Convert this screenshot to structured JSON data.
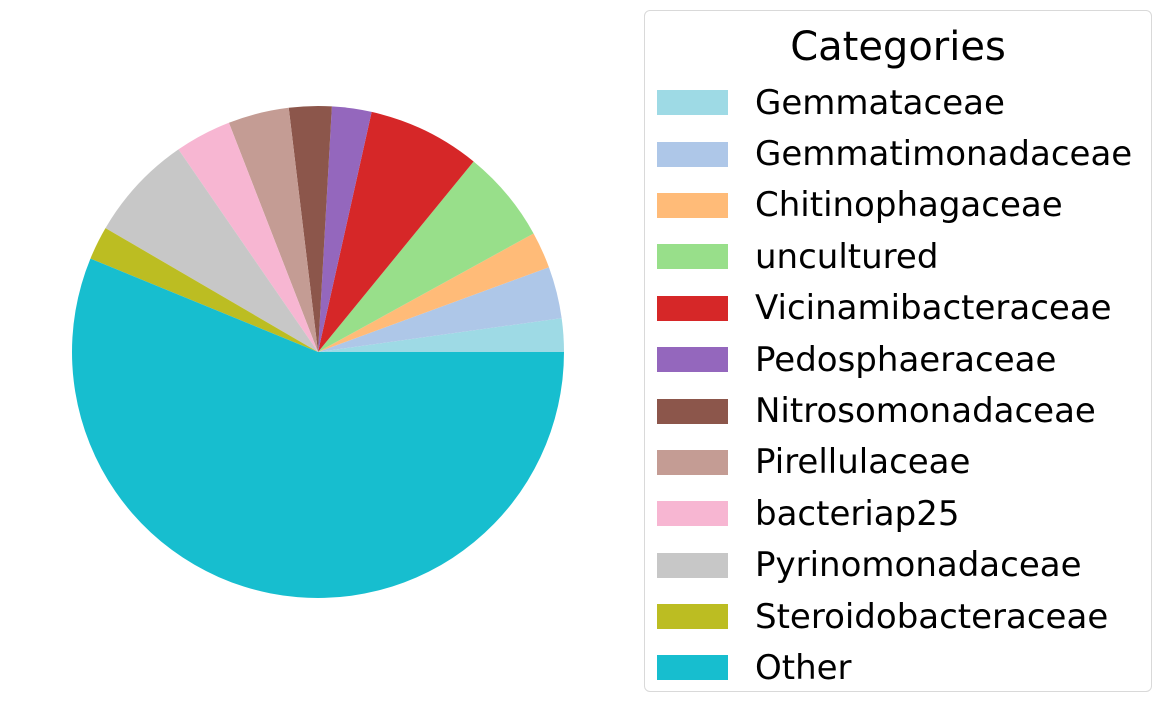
{
  "chart_data": {
    "type": "pie",
    "title": "",
    "legend": {
      "title": "Categories",
      "placement": "right"
    },
    "start_angle_deg": 0,
    "direction": "counterclockwise",
    "slices": [
      {
        "label": "Gemmataceae",
        "value": 2.2,
        "color": "#9edae5"
      },
      {
        "label": "Gemmatimonadaceae",
        "value": 3.4,
        "color": "#aec7e8"
      },
      {
        "label": "Chitinophagaceae",
        "value": 2.4,
        "color": "#ffbb78"
      },
      {
        "label": "uncultured",
        "value": 6.1,
        "color": "#98df8a"
      },
      {
        "label": "Vicinamibacteraceae",
        "value": 7.4,
        "color": "#d62728"
      },
      {
        "label": "Pedosphaeraceae",
        "value": 2.6,
        "color": "#9467bd"
      },
      {
        "label": "Nitrosomonadaceae",
        "value": 2.8,
        "color": "#8c564b"
      },
      {
        "label": "Pirellulaceae",
        "value": 4.0,
        "color": "#c49c94"
      },
      {
        "label": "bacteriap25",
        "value": 3.7,
        "color": "#f7b6d2"
      },
      {
        "label": "Pyrinomonadaceae",
        "value": 7.0,
        "color": "#c7c7c7"
      },
      {
        "label": "Steroidobacteraceae",
        "value": 2.2,
        "color": "#bcbd22"
      },
      {
        "label": "Other",
        "value": 56.2,
        "color": "#17becf"
      }
    ]
  }
}
